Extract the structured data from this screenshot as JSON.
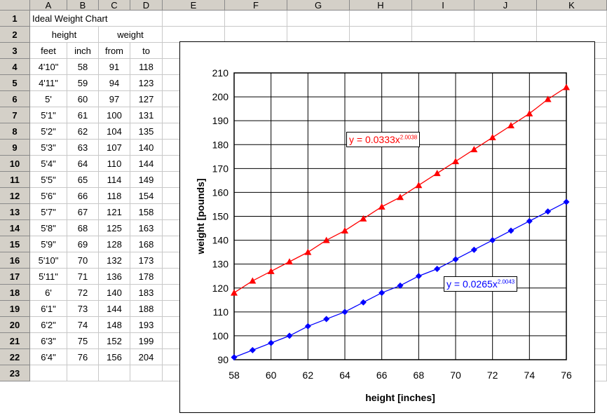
{
  "columns": [
    "A",
    "B",
    "C",
    "D",
    "E",
    "F",
    "G",
    "H",
    "I",
    "J",
    "K"
  ],
  "rows": [
    "1",
    "2",
    "3",
    "4",
    "5",
    "6",
    "7",
    "8",
    "9",
    "10",
    "11",
    "12",
    "13",
    "14",
    "15",
    "16",
    "17",
    "18",
    "19",
    "20",
    "21",
    "22",
    "23"
  ],
  "title": "Ideal Weight Chart",
  "header2": {
    "height": "height",
    "weight": "weight"
  },
  "header3": {
    "feet": "feet",
    "inch": "inch",
    "from": "from",
    "to": "to"
  },
  "table": [
    [
      "4'10\"",
      "58",
      "91",
      "118"
    ],
    [
      "4'11\"",
      "59",
      "94",
      "123"
    ],
    [
      "5'",
      "60",
      "97",
      "127"
    ],
    [
      "5'1\"",
      "61",
      "100",
      "131"
    ],
    [
      "5'2\"",
      "62",
      "104",
      "135"
    ],
    [
      "5'3\"",
      "63",
      "107",
      "140"
    ],
    [
      "5'4\"",
      "64",
      "110",
      "144"
    ],
    [
      "5'5\"",
      "65",
      "114",
      "149"
    ],
    [
      "5'6\"",
      "66",
      "118",
      "154"
    ],
    [
      "5'7\"",
      "67",
      "121",
      "158"
    ],
    [
      "5'8\"",
      "68",
      "125",
      "163"
    ],
    [
      "5'9\"",
      "69",
      "128",
      "168"
    ],
    [
      "5'10\"",
      "70",
      "132",
      "173"
    ],
    [
      "5'11\"",
      "71",
      "136",
      "178"
    ],
    [
      "6'",
      "72",
      "140",
      "183"
    ],
    [
      "6'1\"",
      "73",
      "144",
      "188"
    ],
    [
      "6'2\"",
      "74",
      "148",
      "193"
    ],
    [
      "6'3\"",
      "75",
      "152",
      "199"
    ],
    [
      "6'4\"",
      "76",
      "156",
      "204"
    ]
  ],
  "chart_data": {
    "type": "line",
    "xlabel": "height [inches]",
    "ylabel": "weight [pounds]",
    "xlim": [
      58,
      76
    ],
    "ylim": [
      90,
      210
    ],
    "xticks": [
      58,
      60,
      62,
      64,
      66,
      68,
      70,
      72,
      74,
      76
    ],
    "yticks": [
      90,
      100,
      110,
      120,
      130,
      140,
      150,
      160,
      170,
      180,
      190,
      200,
      210
    ],
    "grid": true,
    "x": [
      58,
      59,
      60,
      61,
      62,
      63,
      64,
      65,
      66,
      67,
      68,
      69,
      70,
      71,
      72,
      73,
      74,
      75,
      76
    ],
    "series": [
      {
        "name": "",
        "color": "#ff0000",
        "marker": "triangle",
        "values": [
          118,
          123,
          127,
          131,
          135,
          140,
          144,
          149,
          154,
          158,
          163,
          168,
          173,
          178,
          183,
          188,
          193,
          199,
          204
        ]
      },
      {
        "name": "",
        "color": "#0000ff",
        "marker": "diamond",
        "values": [
          91,
          94,
          97,
          100,
          104,
          107,
          110,
          114,
          118,
          121,
          125,
          128,
          132,
          136,
          140,
          144,
          148,
          152,
          156
        ]
      }
    ],
    "annotations": [
      {
        "text": "y = 0.0333x",
        "exponent": "2.0038",
        "color": "#ff0000"
      },
      {
        "text": "y = 0.0265x",
        "exponent": "2.0043",
        "color": "#0000ff"
      }
    ]
  }
}
